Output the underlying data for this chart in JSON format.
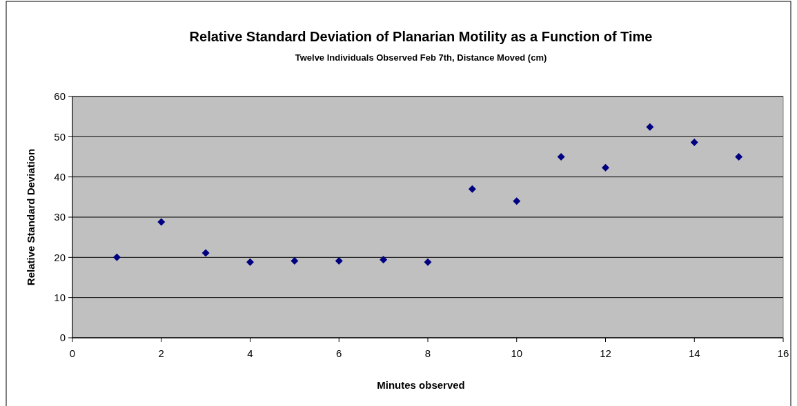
{
  "chart_data": {
    "type": "scatter",
    "title": "Relative Standard Deviation of Planarian Motility as a Function of Time",
    "subtitle": "Twelve Individuals Observed Feb 7th, Distance Moved (cm)",
    "xlabel": "Minutes observed",
    "ylabel": "Relative Standard Deviation",
    "x": [
      1,
      2,
      3,
      4,
      5,
      6,
      7,
      8,
      9,
      10,
      11,
      12,
      13,
      14,
      15
    ],
    "series": [
      {
        "color": "#000080",
        "values": [
          20,
          28.8,
          21.1,
          18.8,
          19.1,
          19.1,
          19.4,
          18.8,
          37,
          34,
          45,
          42.3,
          52.4,
          48.6,
          45
        ]
      }
    ],
    "xlim": [
      0,
      16
    ],
    "xticks": [
      0,
      2,
      4,
      6,
      8,
      10,
      12,
      14,
      16
    ],
    "ylim": [
      0,
      60
    ],
    "yticks": [
      0,
      10,
      20,
      30,
      40,
      50,
      60
    ],
    "grid": "y",
    "marker": "diamond"
  }
}
